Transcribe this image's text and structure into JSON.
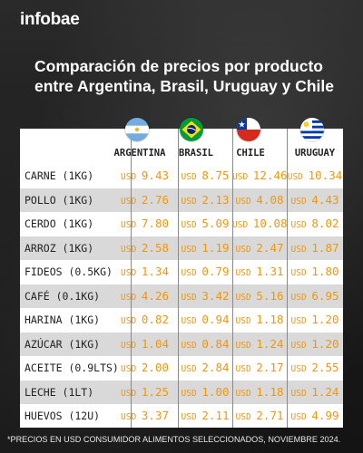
{
  "brand": {
    "logo": "infobae"
  },
  "title": "Comparación de precios por producto entre Argentina, Brasil, Uruguay y Chile",
  "footnote": "*PRECIOS EN USD CONSUMIDOR ALIMENTOS SELECCIONADOS, NOVIEMBRE 2024.",
  "colors": {
    "price": "#f0960e",
    "row_shade": "#d9d9d9",
    "background": "#1c1c1c"
  },
  "chart_data": {
    "type": "table",
    "currency": "USD",
    "columns": [
      {
        "name": "ARGENTINA",
        "flag": "argentina-flag-icon"
      },
      {
        "name": "BRASIL",
        "flag": "brazil-flag-icon"
      },
      {
        "name": "CHILE",
        "flag": "chile-flag-icon"
      },
      {
        "name": "URUGUAY",
        "flag": "uruguay-flag-icon"
      }
    ],
    "rows": [
      {
        "product": "CARNE (1KG)",
        "prices": [
          "9.43",
          "8.75",
          "12.46",
          "10.34"
        ]
      },
      {
        "product": "POLLO (1KG)",
        "prices": [
          "2.76",
          "2.13",
          "4.08",
          "4.43"
        ]
      },
      {
        "product": "CERDO (1KG)",
        "prices": [
          "7.80",
          "5.09",
          "10.08",
          "8.02"
        ]
      },
      {
        "product": "ARROZ (1KG)",
        "prices": [
          "2.58",
          "1.19",
          "2.47",
          "1.87"
        ]
      },
      {
        "product": "FIDEOS (0.5KG)",
        "prices": [
          "1.34",
          "0.79",
          "1.31",
          "1.80"
        ]
      },
      {
        "product": "CAFÉ (0.1KG)",
        "prices": [
          "4.26",
          "3.42",
          "5.16",
          "6.95"
        ]
      },
      {
        "product": "HARINA (1KG)",
        "prices": [
          "0.82",
          "0.94",
          "1.18",
          "1.20"
        ]
      },
      {
        "product": "AZÚCAR (1KG)",
        "prices": [
          "1.04",
          "0.84",
          "1.24",
          "1.20"
        ]
      },
      {
        "product": "ACEITE (0.9LTS)",
        "prices": [
          "2.00",
          "2.84",
          "2.17",
          "2.55"
        ]
      },
      {
        "product": "LECHE (1LT)",
        "prices": [
          "1.25",
          "1.00",
          "1.18",
          "1.24"
        ]
      },
      {
        "product": "HUEVOS (12U)",
        "prices": [
          "3.37",
          "2.11",
          "2.71",
          "4.99"
        ]
      }
    ]
  }
}
